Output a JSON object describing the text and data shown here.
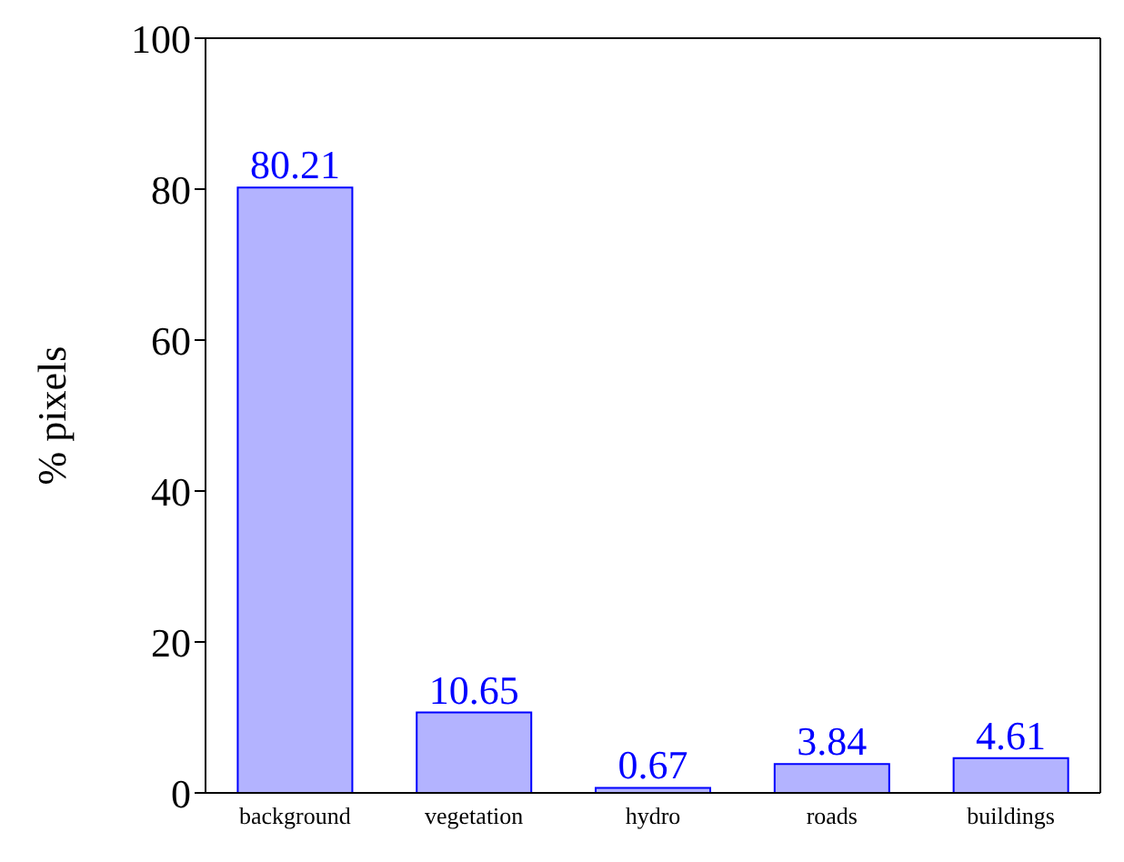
{
  "chart_data": {
    "type": "bar",
    "ylabel": "% pixels",
    "categories": [
      "background",
      "vegetation",
      "hydro",
      "roads",
      "buildings"
    ],
    "values": [
      80.21,
      10.65,
      0.67,
      3.84,
      4.61
    ],
    "color": "#b3b3ff",
    "ylim": [
      0,
      100
    ],
    "yticks": [
      0,
      20,
      40,
      60,
      80,
      100
    ],
    "data_labels": true,
    "grid": false,
    "legend": false
  }
}
